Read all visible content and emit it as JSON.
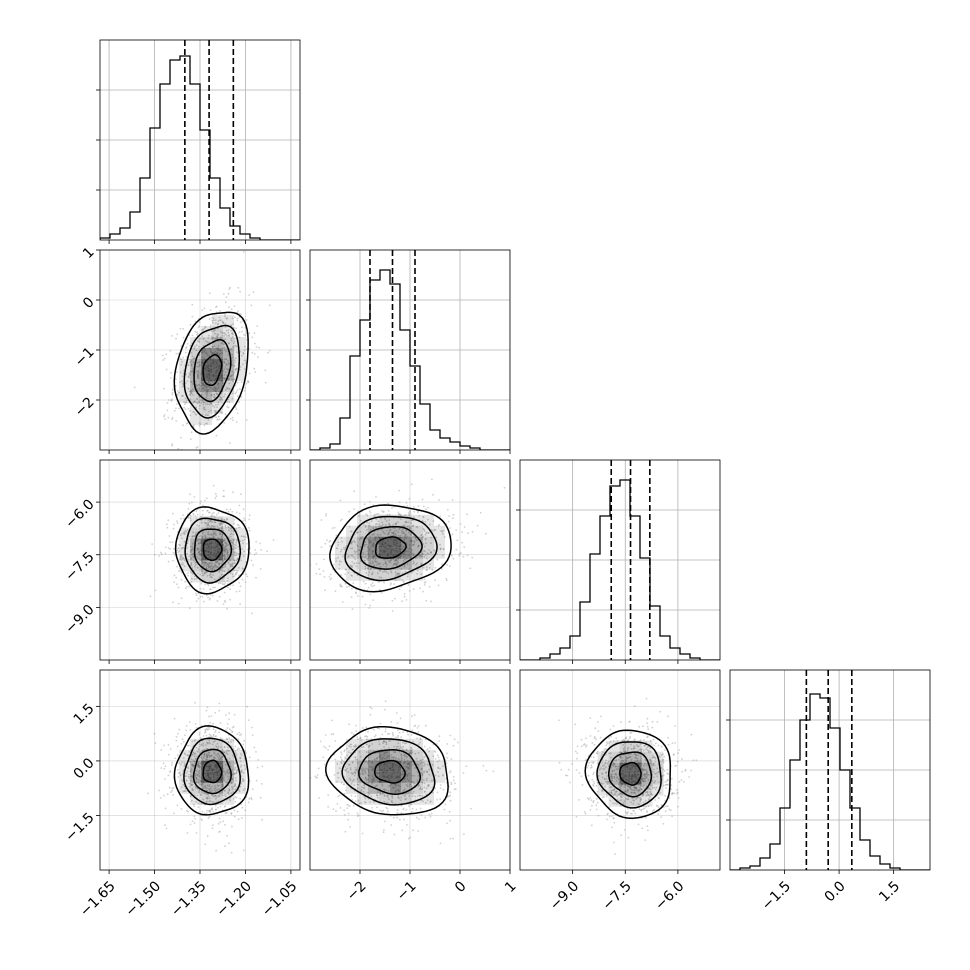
{
  "chart_data": {
    "type": "corner",
    "parameters": [
      {
        "range": [
          -1.68,
          -1.02
        ],
        "ticks": [
          -1.65,
          -1.5,
          -1.35,
          -1.2,
          -1.05
        ],
        "tick_labels": [
          "−1.65",
          "−1.50",
          "−1.35",
          "−1.20",
          "−1.05"
        ],
        "quantiles": [
          -1.4,
          -1.32,
          -1.24
        ],
        "hist_start": -1.68,
        "hist_step": 0.033,
        "hist_counts": [
          1,
          3,
          6,
          14,
          31,
          56,
          78,
          90,
          92,
          78,
          55,
          31,
          16,
          7,
          3,
          1,
          0,
          0,
          0,
          0
        ],
        "hist_ymax": 100,
        "hist_yticks": [
          25,
          50,
          75
        ]
      },
      {
        "range": [
          -3.0,
          1.0
        ],
        "ticks": [
          -2,
          -1,
          0,
          1
        ],
        "tick_labels": [
          "−2",
          "−1",
          "0",
          "1"
        ],
        "quantiles": [
          -1.8,
          -1.35,
          -0.9
        ],
        "hist_start": -3.0,
        "hist_step": 0.2,
        "hist_counts": [
          0,
          1,
          3,
          16,
          47,
          65,
          85,
          90,
          83,
          60,
          42,
          23,
          10,
          6,
          4,
          2,
          1,
          0,
          0,
          0
        ],
        "hist_ymax": 100,
        "hist_yticks": [
          25,
          50,
          75
        ]
      },
      {
        "range": [
          -10.5,
          -4.8
        ],
        "ticks": [
          -9.0,
          -7.5,
          -6.0
        ],
        "tick_labels": [
          "−9.0",
          "−7.5",
          "−6.0"
        ],
        "quantiles": [
          -7.9,
          -7.35,
          -6.8
        ],
        "hist_start": -10.5,
        "hist_step": 0.285,
        "hist_counts": [
          0,
          0,
          1,
          3,
          6,
          12,
          29,
          53,
          72,
          87,
          90,
          72,
          51,
          27,
          12,
          6,
          3,
          1,
          0,
          0
        ],
        "hist_ymax": 100,
        "hist_yticks": [
          25,
          50,
          75
        ]
      },
      {
        "range": [
          -3.0,
          2.5
        ],
        "ticks": [
          -1.5,
          0.0,
          1.5
        ],
        "tick_labels": [
          "−1.5",
          "0.0",
          "1.5"
        ],
        "quantiles": [
          -0.9,
          -0.3,
          0.35
        ],
        "hist_start": -3.0,
        "hist_step": 0.275,
        "hist_counts": [
          0,
          1,
          2,
          6,
          13,
          31,
          55,
          75,
          88,
          86,
          71,
          50,
          31,
          15,
          7,
          3,
          1,
          0,
          0,
          0
        ],
        "hist_ymax": 100,
        "hist_yticks": [
          25,
          50,
          75
        ]
      }
    ],
    "pairs": [
      {
        "xi": 0,
        "yi": 1,
        "mean": [
          -1.31,
          -1.4
        ],
        "sd": [
          0.055,
          0.55
        ],
        "corr": 0.25
      },
      {
        "xi": 0,
        "yi": 2,
        "mean": [
          -1.31,
          -7.35
        ],
        "sd": [
          0.055,
          0.55
        ],
        "corr": 0.0
      },
      {
        "xi": 1,
        "yi": 2,
        "mean": [
          -1.4,
          -7.3
        ],
        "sd": [
          0.55,
          0.55
        ],
        "corr": 0.15
      },
      {
        "xi": 0,
        "yi": 3,
        "mean": [
          -1.31,
          -0.3
        ],
        "sd": [
          0.055,
          0.55
        ],
        "corr": 0.0
      },
      {
        "xi": 1,
        "yi": 3,
        "mean": [
          -1.4,
          -0.3
        ],
        "sd": [
          0.55,
          0.55
        ],
        "corr": -0.1
      },
      {
        "xi": 2,
        "yi": 3,
        "mean": [
          -7.35,
          -0.35
        ],
        "sd": [
          0.55,
          0.55
        ],
        "corr": -0.05
      }
    ],
    "contour_levels_sigma": [
      0.5,
      1.0,
      1.5,
      2.0
    ],
    "grid": true,
    "colors": {
      "line": "#000000",
      "grid": "#b0b0b0",
      "points": "#9a9a9a",
      "density": "#000000"
    }
  }
}
